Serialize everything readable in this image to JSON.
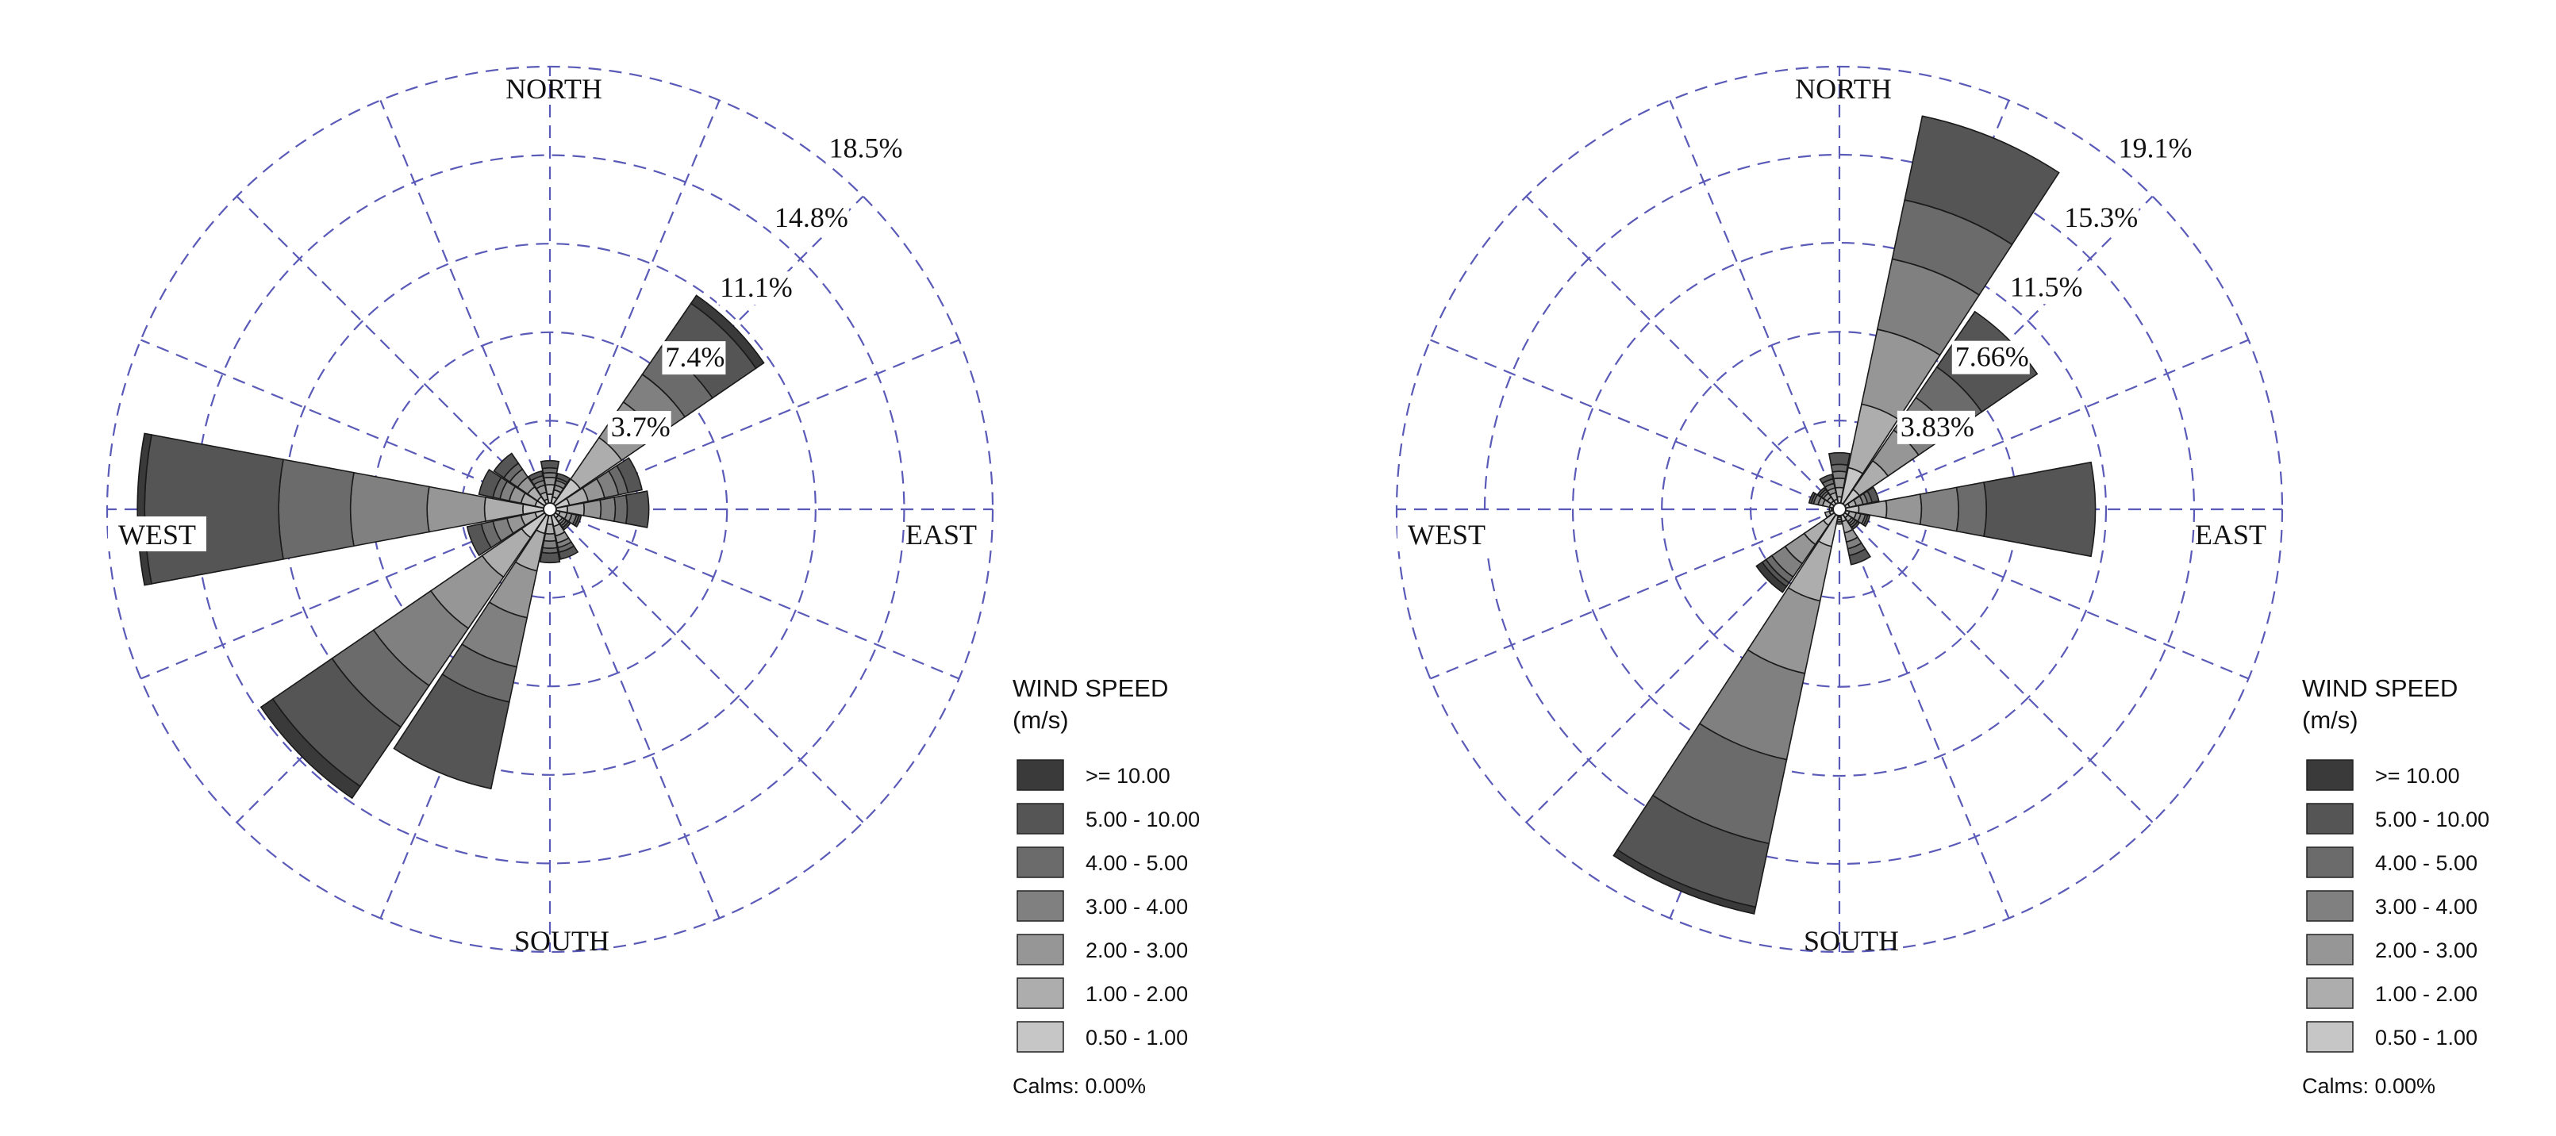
{
  "chart_data": [
    {
      "type": "windrose",
      "directions": [
        "N",
        "NNE",
        "NE",
        "ENE",
        "E",
        "ESE",
        "SE",
        "SSE",
        "S",
        "SSW",
        "SW",
        "WSW",
        "W",
        "WNW",
        "NW",
        "NNW"
      ],
      "compass_labels": {
        "north": "NORTH",
        "east": "EAST",
        "south": "SOUTH",
        "west": "WEST"
      },
      "ring_labels": [
        "3.7%",
        "7.4%",
        "11.1%",
        "14.8%",
        "18.5%"
      ],
      "ring_values": [
        3.7,
        7.4,
        11.1,
        14.8,
        18.5
      ],
      "max_percent": 18.5,
      "speed_bins": [
        ">= 10.00",
        "5.00 - 10.00",
        "4.00 - 5.00",
        "3.00 - 4.00",
        "2.00 - 3.00",
        "1.00 - 2.00",
        "0.50 - 1.00"
      ],
      "bin_colors": [
        "#3a3a3a",
        "#555555",
        "#6b6b6b",
        "#808080",
        "#969696",
        "#adadad",
        "#c6c6c6"
      ],
      "frequencies": [
        [
          0.0,
          0.3,
          0.2,
          0.2,
          0.3,
          0.4,
          0.4
        ],
        [
          0.0,
          0.2,
          0.1,
          0.2,
          0.2,
          0.3,
          0.3
        ],
        [
          0.4,
          2.2,
          1.4,
          1.4,
          1.8,
          2.1,
          1.3
        ],
        [
          0.0,
          0.6,
          0.4,
          0.6,
          0.7,
          0.8,
          0.6
        ],
        [
          0.0,
          0.9,
          0.5,
          0.6,
          0.7,
          0.7,
          0.5
        ],
        [
          0.0,
          0.1,
          0.1,
          0.2,
          0.2,
          0.3,
          0.2
        ],
        [
          0.0,
          0.1,
          0.1,
          0.1,
          0.1,
          0.2,
          0.2
        ],
        [
          0.0,
          0.3,
          0.2,
          0.2,
          0.3,
          0.4,
          0.5
        ],
        [
          0.0,
          0.4,
          0.2,
          0.3,
          0.3,
          0.4,
          0.4
        ],
        [
          0.0,
          3.7,
          1.5,
          2.1,
          2.0,
          1.6,
          0.8
        ],
        [
          0.6,
          3.0,
          2.1,
          2.9,
          2.6,
          2.0,
          1.2
        ],
        [
          0.0,
          0.6,
          0.5,
          0.6,
          0.6,
          0.6,
          0.4
        ],
        [
          0.3,
          5.6,
          3.0,
          3.2,
          2.4,
          1.6,
          0.9
        ],
        [
          0.0,
          0.6,
          0.3,
          0.4,
          0.5,
          0.6,
          0.4
        ],
        [
          0.0,
          0.5,
          0.3,
          0.4,
          0.5,
          0.5,
          0.4
        ],
        [
          0.0,
          0.2,
          0.2,
          0.2,
          0.3,
          0.3,
          0.2
        ]
      ],
      "legend": {
        "title_line1": "WIND SPEED",
        "title_line2": "(m/s)",
        "calms": "Calms: 0.00%"
      }
    },
    {
      "type": "windrose",
      "directions": [
        "N",
        "NNE",
        "NE",
        "ENE",
        "E",
        "ESE",
        "SE",
        "SSE",
        "S",
        "SSW",
        "SW",
        "WSW",
        "W",
        "WNW",
        "NW",
        "NNW"
      ],
      "compass_labels": {
        "north": "NORTH",
        "east": "EAST",
        "south": "SOUTH",
        "west": "WEST"
      },
      "ring_labels": [
        "3.83%",
        "7.66%",
        "11.5%",
        "15.3%",
        "19.1%"
      ],
      "ring_values": [
        3.83,
        7.66,
        11.5,
        15.3,
        19.1
      ],
      "max_percent": 19.1,
      "speed_bins": [
        ">= 10.00",
        "5.00 - 10.00",
        "4.00 - 5.00",
        "3.00 - 4.00",
        "2.00 - 3.00",
        "1.00 - 2.00",
        "0.50 - 1.00"
      ],
      "bin_colors": [
        "#3a3a3a",
        "#555555",
        "#6b6b6b",
        "#808080",
        "#969696",
        "#adadad",
        "#c6c6c6"
      ],
      "frequencies": [
        [
          0.0,
          0.5,
          0.3,
          0.3,
          0.4,
          0.4,
          0.3
        ],
        [
          0.0,
          3.7,
          2.6,
          3.1,
          3.3,
          2.8,
          1.6
        ],
        [
          0.0,
          2.9,
          1.6,
          1.7,
          1.6,
          1.5,
          0.8
        ],
        [
          0.0,
          0.3,
          0.2,
          0.2,
          0.3,
          0.3,
          0.2
        ],
        [
          0.0,
          4.7,
          1.2,
          1.6,
          1.5,
          1.2,
          0.6
        ],
        [
          0.0,
          0.1,
          0.1,
          0.2,
          0.2,
          0.3,
          0.2
        ],
        [
          0.0,
          0.1,
          0.1,
          0.1,
          0.1,
          0.2,
          0.2
        ],
        [
          0.0,
          0.4,
          0.3,
          0.3,
          0.4,
          0.5,
          0.3
        ],
        [
          0.0,
          0.0,
          0.0,
          0.1,
          0.1,
          0.1,
          0.1
        ],
        [
          0.3,
          2.8,
          3.7,
          3.8,
          3.2,
          2.4,
          1.4
        ],
        [
          0.3,
          0.2,
          0.3,
          0.7,
          1.0,
          1.0,
          0.6
        ],
        [
          0.0,
          0.0,
          0.0,
          0.0,
          0.0,
          0.2,
          0.2
        ],
        [
          0.0,
          0.0,
          0.0,
          0.0,
          0.0,
          0.1,
          0.1
        ],
        [
          0.0,
          0.1,
          0.1,
          0.2,
          0.2,
          0.3,
          0.2
        ],
        [
          0.0,
          0.1,
          0.1,
          0.1,
          0.2,
          0.2,
          0.2
        ],
        [
          0.0,
          0.2,
          0.2,
          0.2,
          0.2,
          0.3,
          0.2
        ]
      ],
      "legend": {
        "title_line1": "WIND SPEED",
        "title_line2": "(m/s)",
        "calms": "Calms: 0.00%"
      }
    }
  ]
}
